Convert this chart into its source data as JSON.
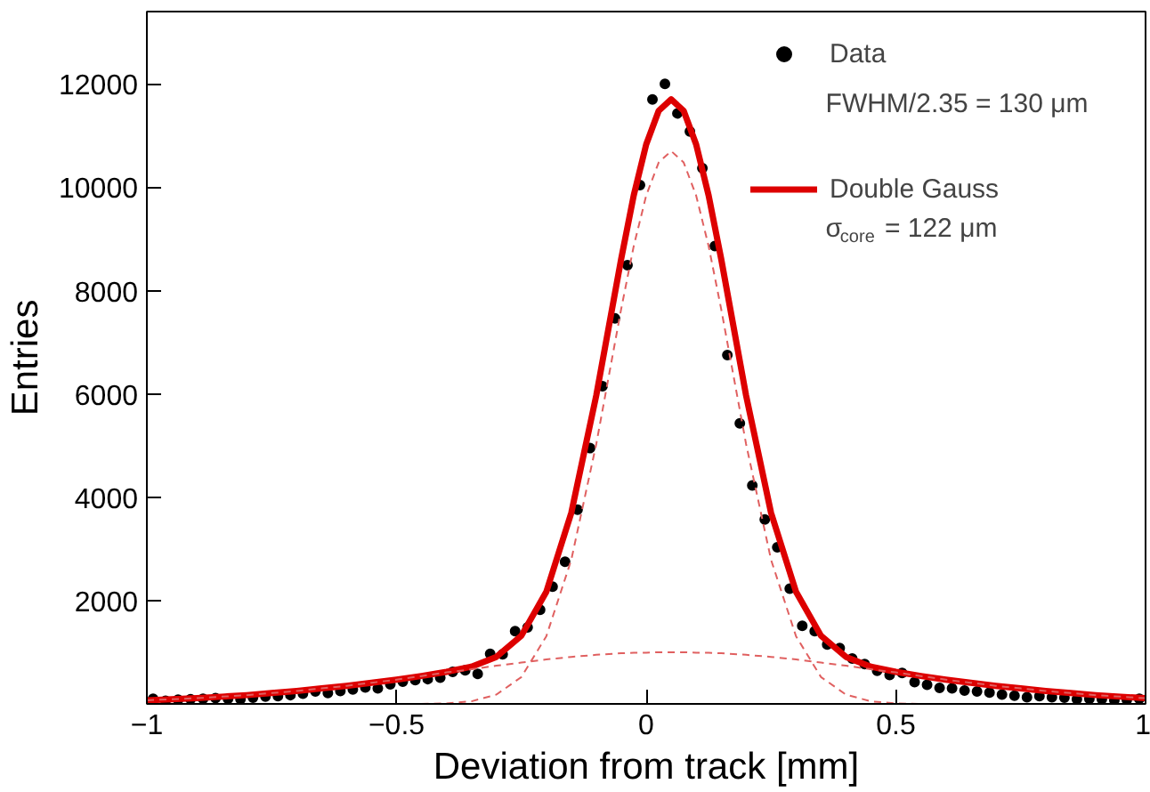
{
  "chart_data": {
    "type": "scatter",
    "xlabel": "Deviation from track [mm]",
    "ylabel": "Entries",
    "xlim": [
      -1,
      1
    ],
    "ylim": [
      0,
      13400
    ],
    "xticks": [
      {
        "value": -1,
        "label": "−1"
      },
      {
        "value": -0.5,
        "label": "−0.5"
      },
      0,
      0.5,
      1
    ],
    "yticks": [
      2000,
      4000,
      6000,
      8000,
      10000,
      12000
    ],
    "grid": false,
    "legend": "top right",
    "marker": "circle",
    "annotations": [
      "FWHM/2.35 = 130 μm",
      "σ$_{core}$ = 122 μm"
    ],
    "series": [
      {
        "name": "Data",
        "color": "#000000",
        "x": [
          -0.9875,
          -0.9625,
          -0.9375,
          -0.9125,
          -0.8875,
          -0.8625,
          -0.8375,
          -0.8125,
          -0.7875,
          -0.7625,
          -0.7375,
          -0.7125,
          -0.6875,
          -0.6625,
          -0.6375,
          -0.6125,
          -0.5875,
          -0.5625,
          -0.5375,
          -0.5125,
          -0.4875,
          -0.4625,
          -0.4375,
          -0.4125,
          -0.3875,
          -0.3625,
          -0.3375,
          -0.3125,
          -0.2875,
          -0.2625,
          -0.2375,
          -0.2125,
          -0.1875,
          -0.1625,
          -0.1375,
          -0.1125,
          -0.0875,
          -0.0625,
          -0.0375,
          -0.0125,
          0.0125,
          0.0375,
          0.0625,
          0.0875,
          0.1125,
          0.1375,
          0.1625,
          0.1875,
          0.2125,
          0.2375,
          0.2625,
          0.2875,
          0.3125,
          0.3375,
          0.3625,
          0.3875,
          0.4125,
          0.4375,
          0.4625,
          0.4875,
          0.5125,
          0.5375,
          0.5625,
          0.5875,
          0.6125,
          0.6375,
          0.6625,
          0.6875,
          0.7125,
          0.7375,
          0.7625,
          0.7875,
          0.8125,
          0.8375,
          0.8625,
          0.8875,
          0.9125,
          0.9375,
          0.9625,
          0.9875
        ],
        "values": [
          100,
          60,
          80,
          90,
          100,
          110,
          100,
          90,
          120,
          140,
          150,
          170,
          200,
          240,
          210,
          250,
          280,
          320,
          300,
          380,
          430,
          460,
          480,
          510,
          620,
          650,
          580,
          970,
          960,
          1410,
          1480,
          1820,
          2270,
          2750,
          3760,
          4950,
          6150,
          7460,
          8490,
          10040,
          11700,
          12000,
          11430,
          11080,
          10370,
          8860,
          6750,
          5430,
          4230,
          3570,
          3030,
          2230,
          1510,
          1410,
          1150,
          1080,
          880,
          770,
          640,
          560,
          600,
          420,
          370,
          310,
          300,
          260,
          240,
          220,
          180,
          160,
          130,
          150,
          130,
          120,
          90,
          100,
          90,
          70,
          80,
          100
        ]
      },
      {
        "name": "Double Gauss",
        "type": "line",
        "marker": "none",
        "color": "#dd0000",
        "x": [
          -1,
          -0.95,
          -0.9,
          -0.85,
          -0.8,
          -0.75,
          -0.7,
          -0.65,
          -0.6,
          -0.55,
          -0.5,
          -0.45,
          -0.4,
          -0.35,
          -0.3,
          -0.25,
          -0.2,
          -0.15,
          -0.1,
          -0.05,
          -0.025,
          0,
          0.025,
          0.05,
          0.075,
          0.1,
          0.125,
          0.15,
          0.2,
          0.25,
          0.3,
          0.35,
          0.4,
          0.45,
          0.5,
          0.55,
          0.6,
          0.65,
          0.7,
          0.75,
          0.8,
          0.85,
          0.9,
          0.95,
          1
        ],
        "values": [
          70,
          90,
          110,
          140,
          170,
          210,
          250,
          300,
          350,
          410,
          470,
          540,
          620,
          720,
          910,
          1320,
          2170,
          3700,
          5970,
          8620,
          9840,
          10830,
          11480,
          11700,
          11480,
          10830,
          9840,
          8620,
          5970,
          3700,
          2170,
          1320,
          910,
          720,
          620,
          540,
          470,
          410,
          350,
          300,
          250,
          210,
          170,
          140,
          110
        ]
      },
      {
        "type": "line",
        "marker": "none",
        "line_style": "dashed",
        "color": "#e06060",
        "x": [
          -0.45,
          -0.4,
          -0.35,
          -0.3,
          -0.25,
          -0.2,
          -0.15,
          -0.1,
          -0.05,
          -0.025,
          0,
          0.025,
          0.05,
          0.075,
          0.1,
          0.125,
          0.15,
          0.2,
          0.25,
          0.3,
          0.35,
          0.4,
          0.45,
          0.5,
          0.55
        ],
        "values": [
          0,
          10,
          50,
          180,
          520,
          1310,
          2790,
          5030,
          7650,
          8860,
          9840,
          10480,
          10700,
          10480,
          9840,
          8860,
          7650,
          5030,
          2790,
          1310,
          520,
          180,
          50,
          10,
          0
        ]
      },
      {
        "type": "line",
        "marker": "none",
        "line_style": "dashed",
        "color": "#e06060",
        "x": [
          -1,
          -0.95,
          -0.9,
          -0.85,
          -0.8,
          -0.75,
          -0.7,
          -0.65,
          -0.6,
          -0.55,
          -0.5,
          -0.45,
          -0.4,
          -0.35,
          -0.3,
          -0.25,
          -0.2,
          -0.15,
          -0.1,
          -0.05,
          -0.025,
          0,
          0.025,
          0.05,
          0.075,
          0.1,
          0.125,
          0.15,
          0.2,
          0.25,
          0.3,
          0.35,
          0.4,
          0.45,
          0.5,
          0.55,
          0.6,
          0.65,
          0.7,
          0.75,
          0.8,
          0.85,
          0.9,
          0.95,
          1
        ],
        "values": [
          70,
          90,
          110,
          140,
          170,
          210,
          250,
          300,
          350,
          410,
          470,
          540,
          610,
          670,
          740,
          800,
          860,
          910,
          950,
          980,
          990,
          990,
          1000,
          1000,
          1000,
          990,
          990,
          980,
          950,
          910,
          860,
          800,
          740,
          670,
          610,
          540,
          470,
          410,
          350,
          300,
          250,
          210,
          170,
          140,
          110
        ]
      }
    ]
  }
}
